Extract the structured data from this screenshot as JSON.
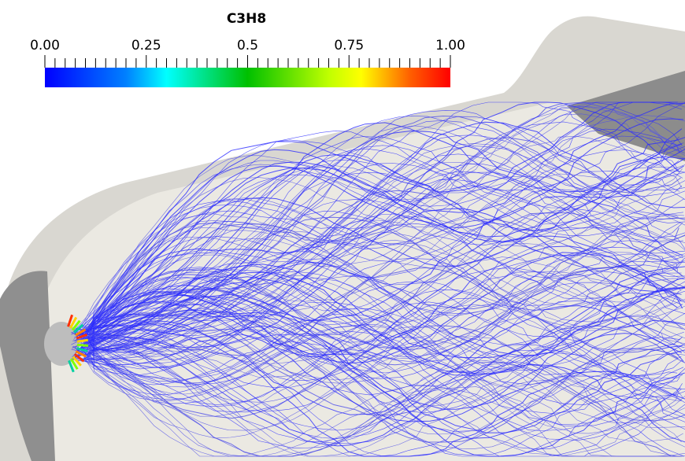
{
  "legend": {
    "title": "C3H8",
    "ticks": [
      "0.00",
      "0.25",
      "0.5",
      "0.75",
      "1.00"
    ]
  }
}
